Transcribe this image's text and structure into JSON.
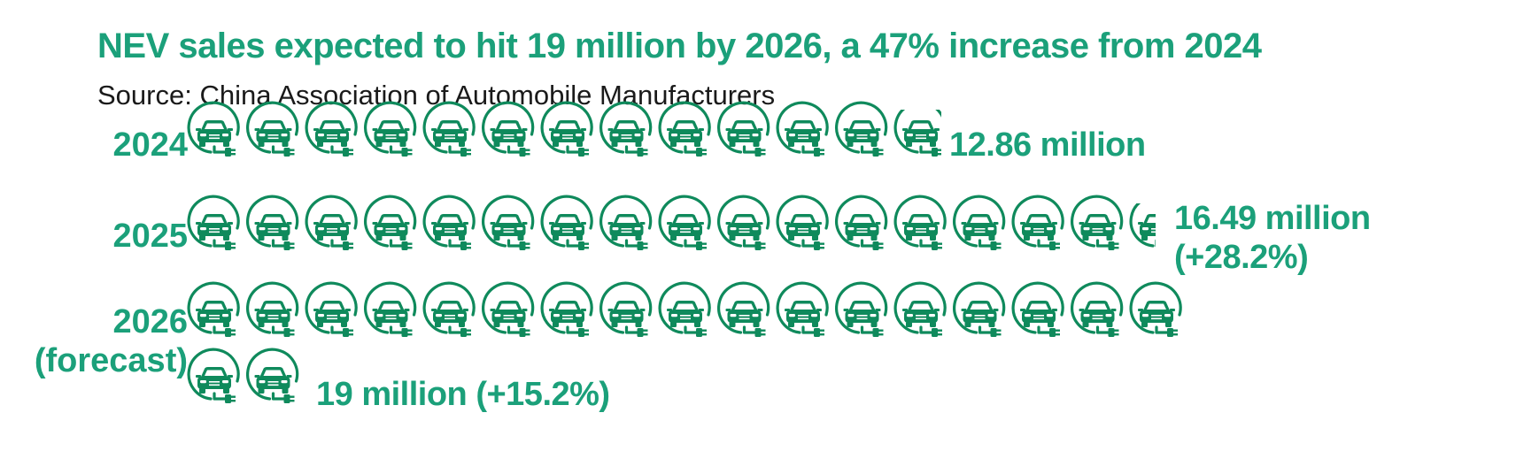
{
  "title": "NEV sales expected to hit 19 million by 2026, a 47% increase from 2024",
  "source": "Source: China Association of Automobile Manufacturers",
  "colors": {
    "title": "#1ba07a",
    "icon": "#0f8a5c",
    "source_text": "#1a1a1a"
  },
  "icon_name": "electric-car-plug-icon",
  "chart_data": {
    "type": "pictogram",
    "title": "NEV sales expected to hit 19 million by 2026, a 47% increase from 2024",
    "unit_per_icon": "1 million",
    "series": [
      {
        "year": "2024",
        "year_note": "",
        "value": 12.86,
        "label": "12.86 million",
        "label_line2": ""
      },
      {
        "year": "2025",
        "year_note": "",
        "value": 16.49,
        "label": "16.49 million",
        "label_line2": "(+28.2%)"
      },
      {
        "year": "2026",
        "year_note": "(forecast)",
        "value": 19,
        "label": "19 million (+15.2%)",
        "label_line2": ""
      }
    ]
  }
}
